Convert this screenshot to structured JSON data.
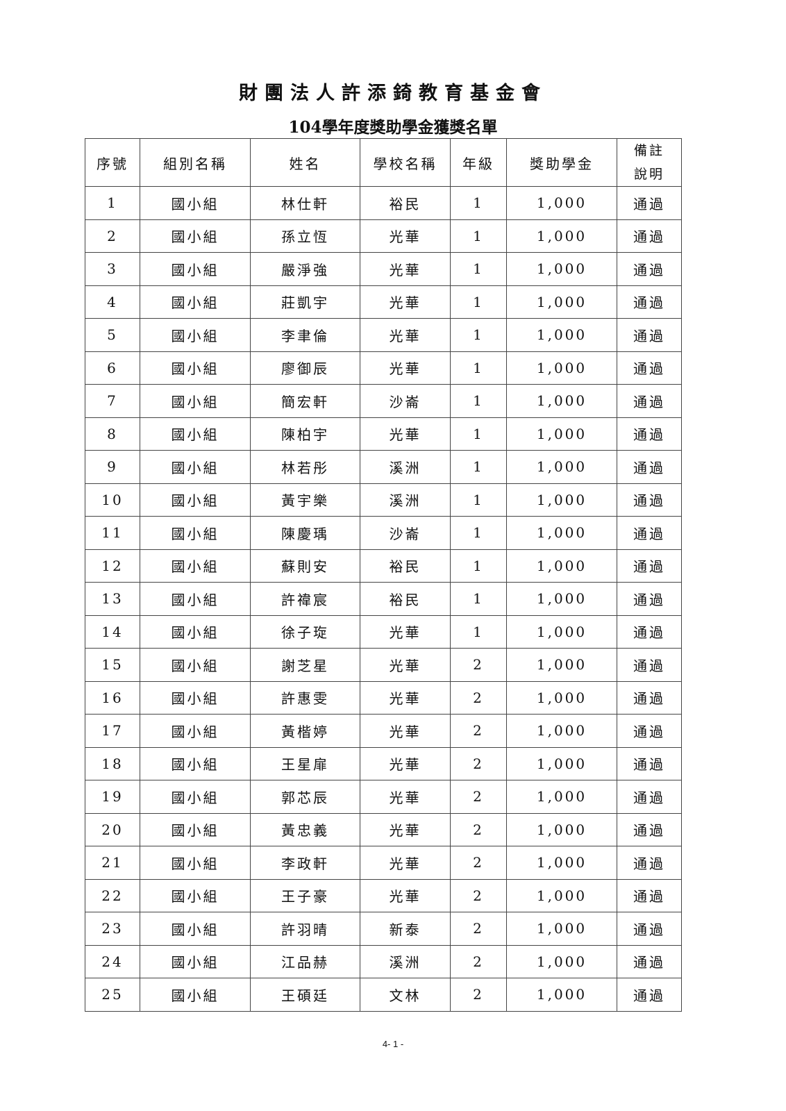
{
  "title": "財團法人許添錡教育基金會",
  "subtitle": "104學年度獎助學金獲獎名單",
  "table": {
    "headers": [
      "序號",
      "組別名稱",
      "姓名",
      "學校名稱",
      "年級",
      "獎助學金",
      "備註說明"
    ],
    "rows": [
      [
        "1",
        "國小組",
        "林仕軒",
        "裕民",
        "1",
        "1,000",
        "通過"
      ],
      [
        "2",
        "國小組",
        "孫立恆",
        "光華",
        "1",
        "1,000",
        "通過"
      ],
      [
        "3",
        "國小組",
        "嚴淨強",
        "光華",
        "1",
        "1,000",
        "通過"
      ],
      [
        "4",
        "國小組",
        "莊凱宇",
        "光華",
        "1",
        "1,000",
        "通過"
      ],
      [
        "5",
        "國小組",
        "李聿倫",
        "光華",
        "1",
        "1,000",
        "通過"
      ],
      [
        "6",
        "國小組",
        "廖御辰",
        "光華",
        "1",
        "1,000",
        "通過"
      ],
      [
        "7",
        "國小組",
        "簡宏軒",
        "沙崙",
        "1",
        "1,000",
        "通過"
      ],
      [
        "8",
        "國小組",
        "陳柏宇",
        "光華",
        "1",
        "1,000",
        "通過"
      ],
      [
        "9",
        "國小組",
        "林若彤",
        "溪洲",
        "1",
        "1,000",
        "通過"
      ],
      [
        "10",
        "國小組",
        "黃宇樂",
        "溪洲",
        "1",
        "1,000",
        "通過"
      ],
      [
        "11",
        "國小組",
        "陳慶瑀",
        "沙崙",
        "1",
        "1,000",
        "通過"
      ],
      [
        "12",
        "國小組",
        "蘇則安",
        "裕民",
        "1",
        "1,000",
        "通過"
      ],
      [
        "13",
        "國小組",
        "許禕宸",
        "裕民",
        "1",
        "1,000",
        "通過"
      ],
      [
        "14",
        "國小組",
        "徐子琁",
        "光華",
        "1",
        "1,000",
        "通過"
      ],
      [
        "15",
        "國小組",
        "謝芝星",
        "光華",
        "2",
        "1,000",
        "通過"
      ],
      [
        "16",
        "國小組",
        "許惠雯",
        "光華",
        "2",
        "1,000",
        "通過"
      ],
      [
        "17",
        "國小組",
        "黃楷婷",
        "光華",
        "2",
        "1,000",
        "通過"
      ],
      [
        "18",
        "國小組",
        "王星扉",
        "光華",
        "2",
        "1,000",
        "通過"
      ],
      [
        "19",
        "國小組",
        "郭芯辰",
        "光華",
        "2",
        "1,000",
        "通過"
      ],
      [
        "20",
        "國小組",
        "黃忠義",
        "光華",
        "2",
        "1,000",
        "通過"
      ],
      [
        "21",
        "國小組",
        "李政軒",
        "光華",
        "2",
        "1,000",
        "通過"
      ],
      [
        "22",
        "國小組",
        "王子豪",
        "光華",
        "2",
        "1,000",
        "通過"
      ],
      [
        "23",
        "國小組",
        "許羽晴",
        "新泰",
        "2",
        "1,000",
        "通過"
      ],
      [
        "24",
        "國小組",
        "江品赫",
        "溪洲",
        "2",
        "1,000",
        "通過"
      ],
      [
        "25",
        "國小組",
        "王碩廷",
        "文林",
        "2",
        "1,000",
        "通過"
      ]
    ]
  },
  "footer": "4- 1 -"
}
